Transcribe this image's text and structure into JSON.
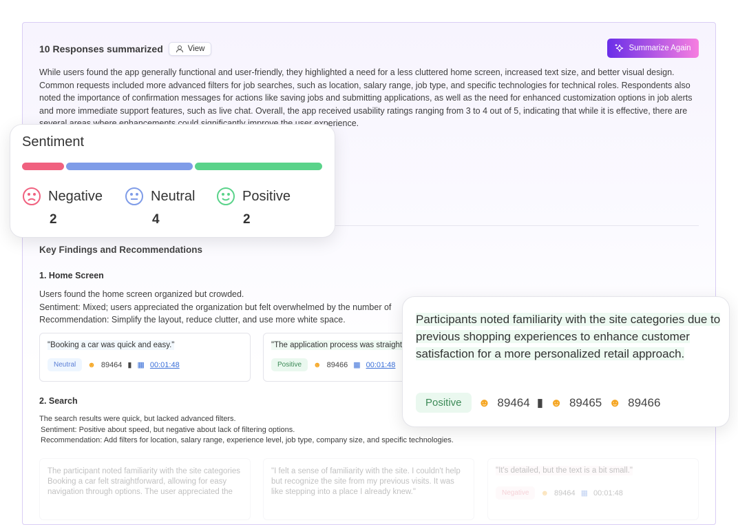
{
  "header": {
    "title": "10 Responses summarized",
    "view_label": "View",
    "summarize_label": "Summarize Again"
  },
  "summary": "While users found the app generally functional and user-friendly, they highlighted a need for a less cluttered home screen, increased text size, and better visual design. Common requests included more advanced filters for job searches, such as location, salary range, job type, and specific technologies for technical roles. Respondents also noted the importance of confirmation messages for actions like saving jobs and submitting applications, as well as the need for enhanced customization options in job alerts and more immediate support features, such as live chat. Overall, the app received usability ratings ranging from 3 to 4 out of 5, indicating that while it is effective, there are several areas where enhancements could significantly improve the user experience.",
  "key_findings_title": "Key Findings and Recommendations",
  "sections": [
    {
      "title": "1. Home Screen",
      "lines": [
        "Users found the home screen organized but crowded.",
        "Sentiment: Mixed; users appreciated the organization but felt overwhelmed by the number of",
        "Recommendation: Simplify the layout, reduce clutter, and use more white space."
      ],
      "quotes": [
        {
          "text": "\"Booking a car was quick and easy.\"",
          "sentiment": "Neutral",
          "user": "89464",
          "time": "00:01:48"
        },
        {
          "text": "\"The application process was straightforward.\"",
          "sentiment": "Positive",
          "user": "89466",
          "time": "00:01:48"
        }
      ]
    },
    {
      "title": "2. Search",
      "lines": [
        "The search results were quick, but lacked advanced filters.",
        "Sentiment: Positive about speed, but negative about lack of filtering options.",
        "Recommendation: Add filters for location, salary range, experience level, job type, company size, and specific technologies."
      ],
      "quotes": [
        {
          "text": "The participant noted familiarity with the site categories Booking a car felt straightforward, allowing for easy navigation through options. The user appreciated the"
        },
        {
          "text": "\"I felt a sense of familiarity with the site. I couldn't help but recognize the site from my previous visits. It was like stepping into a place I already knew.\""
        },
        {
          "text": "\"It's detailed, but the text is a bit small.\"",
          "sentiment": "Negative",
          "user": "89464",
          "time": "00:01:48"
        }
      ]
    }
  ],
  "sentiment": {
    "title": "Sentiment",
    "negative": {
      "label": "Negative",
      "count": "2"
    },
    "neutral": {
      "label": "Neutral",
      "count": "4"
    },
    "positive": {
      "label": "Positive",
      "count": "2"
    },
    "colors": {
      "negative": "#f0617f",
      "neutral": "#7f9ce8",
      "positive": "#5ad38a"
    }
  },
  "popup": {
    "text": "Participants noted familiarity with the site categories due to previous shopping experiences to enhance customer satisfaction for a more personalized retail approach.",
    "sentiment": "Positive",
    "users": [
      "89464",
      "89465",
      "89466"
    ]
  }
}
